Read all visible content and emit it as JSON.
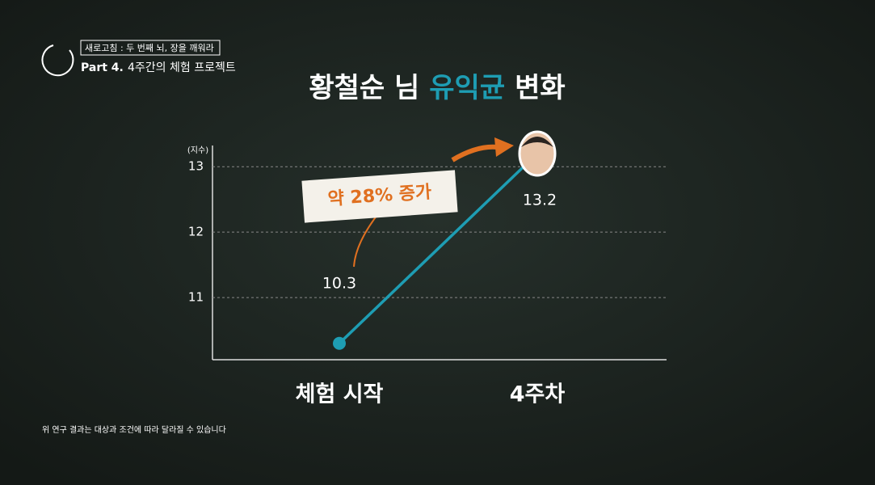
{
  "header": {
    "series_title": "새로고침 : 두 번째 뇌, 장을 깨워라",
    "part": "Part 4.",
    "part_title": "4주간의 체험 프로젝트"
  },
  "chart_data": {
    "type": "line",
    "title_parts": [
      "황철순 님",
      "유익균",
      "변화"
    ],
    "title_highlight_color": "#1e9db3",
    "y_label": "(지수)",
    "categories": [
      "체험 시작",
      "4주차"
    ],
    "values": [
      10.3,
      13.2
    ],
    "color": "#1e9db3",
    "ylim": [
      10.05,
      13.2
    ],
    "yticks": [
      11,
      12,
      13
    ],
    "grid": true,
    "annotation": "약 28% 증가"
  },
  "footer": {
    "note": "위 연구 결과는 대상과 조건에 따라 달라질 수 있습니다"
  }
}
